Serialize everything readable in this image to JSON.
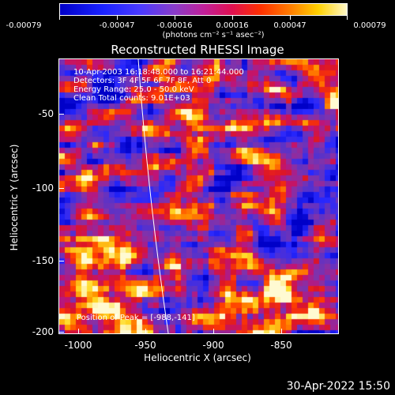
{
  "colorbar": {
    "labels": [
      "-0.00079",
      "-0.00047",
      "-0.00016",
      "0.00016",
      "0.00047",
      "0.00079"
    ],
    "unit": "(photons cm⁻² s⁻¹ asec⁻²)"
  },
  "title": "Reconstructed RHESSI Image",
  "annotation": {
    "time_range": "10-Apr-2003 16:18:48.000 to 16:21:44.000",
    "detectors": "Detectors: 3F 4F 5F 6F 7F 8F, Att 0",
    "energy": "Energy Range: 25.0 - 50.0 keV",
    "method": "Clean     Total counts: 9.01E+03"
  },
  "peak": "Position of Peak = [-988,-141]",
  "axes": {
    "ylabel": "Heliocentric Y (arcsec)",
    "xlabel": "Heliocentric X (arcsec)",
    "yticks": [
      "-50",
      "-100",
      "-150",
      "-200"
    ],
    "xticks": [
      "-1000",
      "-950",
      "-900",
      "-850"
    ]
  },
  "timestamp": "30-Apr-2022 15:50",
  "colors": {
    "background": "#000000",
    "axis": "#ffffff"
  }
}
